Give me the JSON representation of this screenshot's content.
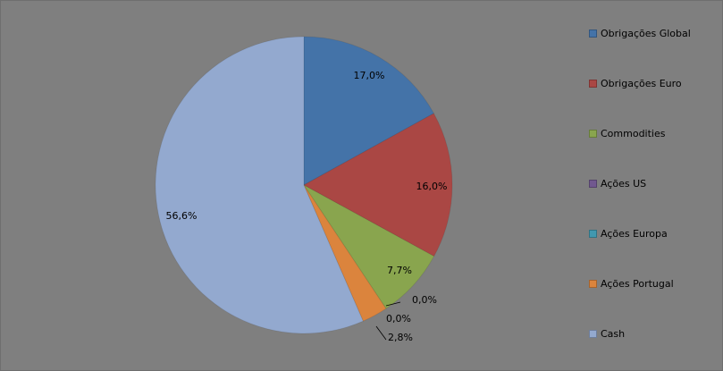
{
  "chart_data": {
    "type": "pie",
    "title": "",
    "slices": [
      {
        "label": "Obrigações Global",
        "value": 17.0,
        "display": "17,0%",
        "color": "#4473a8"
      },
      {
        "label": "Obrigações Euro",
        "value": 16.0,
        "display": "16,0%",
        "color": "#aa4744"
      },
      {
        "label": "Commodities",
        "value": 7.7,
        "display": "7,7%",
        "color": "#89a54e"
      },
      {
        "label": "Ações US",
        "value": 0.0,
        "display": "0,0%",
        "color": "#71588f"
      },
      {
        "label": "Ações Europa",
        "value": 0.0,
        "display": "0,0%",
        "color": "#4198af"
      },
      {
        "label": "Ações Portugal",
        "value": 2.8,
        "display": "2,8%",
        "color": "#db843d"
      },
      {
        "label": "Cash",
        "value": 56.6,
        "display": "56,6%",
        "color": "#93a9cf"
      }
    ],
    "legend_position": "right"
  }
}
